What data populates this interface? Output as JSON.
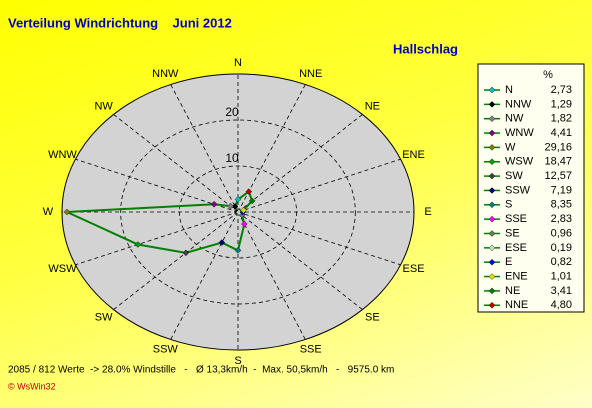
{
  "chart_data": {
    "type": "radar",
    "title": "Verteilung Windrichtung    Juni 2012",
    "subtitle": "Hallschlag",
    "categories": [
      "N",
      "NNW",
      "NW",
      "WNW",
      "W",
      "WSW",
      "SW",
      "SSW",
      "S",
      "SSE",
      "SE",
      "ESE",
      "E",
      "ENE",
      "NE",
      "NNE"
    ],
    "values": [
      2.73,
      1.29,
      1.82,
      4.41,
      29.16,
      18.47,
      12.57,
      7.19,
      8.35,
      2.83,
      0.96,
      0.19,
      0.82,
      1.01,
      3.41,
      4.8
    ],
    "value_labels": [
      "2,73",
      "1,29",
      "1,82",
      "4,41",
      "29,16",
      "18,47",
      "12,57",
      "7,19",
      "8,35",
      "2,83",
      "0,96",
      "0,19",
      "0,82",
      "1,01",
      "3,41",
      "4,80"
    ],
    "colors": [
      "#00c0c0",
      "#000000",
      "#808080",
      "#800080",
      "#808000",
      "#00a000",
      "#404040",
      "#000080",
      "#008080",
      "#ff00ff",
      "#608060",
      "#c0e0c0",
      "#0000ff",
      "#e0e000",
      "#008000",
      "#c00000"
    ],
    "line_color": "#008000",
    "rlim": [
      0,
      30
    ],
    "rticks": [
      10,
      20
    ],
    "legend_header": "%",
    "footer": "2085 / 812 Werte  -> 28.0% Windstille   -   Ø 13,3km/h  -  Max. 50,5km/h   -   9575.0 km",
    "credit": "© WsWin32"
  }
}
